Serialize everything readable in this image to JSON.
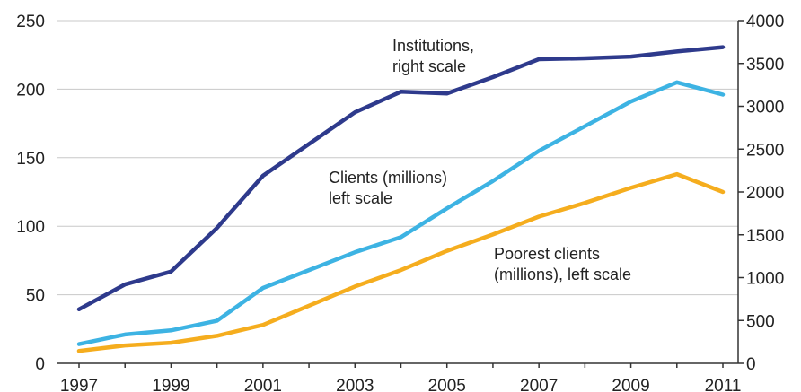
{
  "chart_data": {
    "type": "line",
    "x": [
      1997,
      1998,
      1999,
      2000,
      2001,
      2002,
      2003,
      2004,
      2005,
      2006,
      2007,
      2008,
      2009,
      2010,
      2011
    ],
    "x_tick_labels": [
      "1997",
      "1999",
      "2001",
      "2003",
      "2005",
      "2007",
      "2009",
      "2011"
    ],
    "y_left": {
      "ylim": [
        0,
        250
      ],
      "ticks": [
        0,
        50,
        100,
        150,
        200,
        250
      ]
    },
    "y_right": {
      "ylim": [
        0,
        4000
      ],
      "ticks": [
        0,
        500,
        1000,
        1500,
        2000,
        2500,
        3000,
        3500,
        4000
      ]
    },
    "grid": "horizontal",
    "series": [
      {
        "key": "institutions",
        "axis": "right",
        "color": "#2e3a8c",
        "values": [
          630,
          920,
          1070,
          1580,
          2190,
          2560,
          2930,
          3170,
          3150,
          3340,
          3550,
          3560,
          3580,
          3640,
          3690
        ],
        "annotation": [
          "Institutions,",
          "right scale"
        ]
      },
      {
        "key": "clients",
        "axis": "left",
        "color": "#3db3e3",
        "values": [
          14,
          21,
          24,
          31,
          55,
          68,
          81,
          92,
          113,
          133,
          155,
          173,
          191,
          205,
          196
        ],
        "annotation": [
          "Clients (millions)",
          "left scale"
        ]
      },
      {
        "key": "poorest_clients",
        "axis": "left",
        "color": "#f5ad1e",
        "values": [
          9,
          13,
          15,
          20,
          28,
          42,
          56,
          68,
          82,
          94,
          107,
          117,
          128,
          138,
          125
        ],
        "annotation": [
          "Poorest clients",
          "(millions), left scale"
        ]
      }
    ]
  }
}
